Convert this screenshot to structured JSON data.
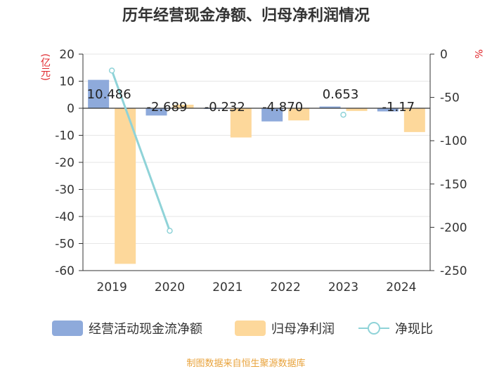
{
  "title": "历年经营现金净额、归母净利润情况",
  "source": "制图数据来自恒生聚源数据库",
  "colors": {
    "cash_flow": "#8eaadb",
    "net_profit": "#fdd89b",
    "ratio": "#8fd3d8"
  },
  "chart_data": {
    "type": "bar",
    "title": "历年经营现金净额、归母净利润情况",
    "categories": [
      "2019",
      "2020",
      "2021",
      "2022",
      "2023",
      "2024"
    ],
    "left_axis": {
      "unit": "(亿元)",
      "ylim": [
        -60,
        20
      ],
      "ticks": [
        20,
        10,
        0,
        -10,
        -20,
        -30,
        -40,
        -50,
        -60
      ]
    },
    "right_axis": {
      "unit": "%",
      "ylim": [
        -250,
        0
      ],
      "ticks": [
        0,
        -50,
        -100,
        -150,
        -200,
        -250
      ]
    },
    "series": [
      {
        "name": "经营活动现金流净额",
        "type": "bar",
        "axis": "left",
        "values": [
          10.486,
          -2.689,
          -0.232,
          -4.87,
          0.653,
          -1.17
        ],
        "labels": [
          "10.486",
          "-2.689",
          "-0.232",
          "-4.870",
          "0.653",
          "-1.17"
        ]
      },
      {
        "name": "归母净利润",
        "type": "bar",
        "axis": "left",
        "values": [
          -57.5,
          1.3,
          -10.8,
          -4.5,
          -1.0,
          -8.8
        ]
      },
      {
        "name": "净现比",
        "type": "line",
        "axis": "right",
        "values": [
          -19,
          -204,
          null,
          null,
          -70,
          null
        ]
      }
    ],
    "grid": true,
    "legend_position": "bottom"
  }
}
